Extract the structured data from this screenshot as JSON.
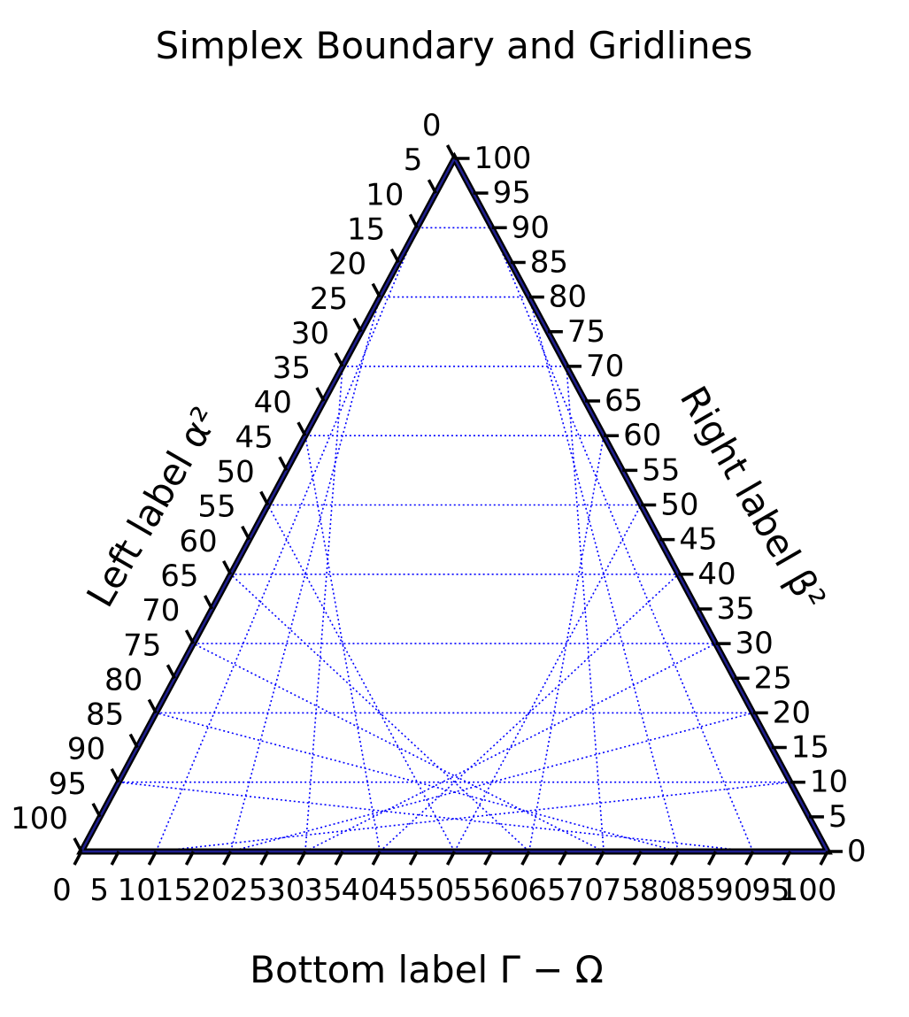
{
  "chart_data": {
    "type": "ternary",
    "title": "Simplex Boundary and Gridlines",
    "scale": 100,
    "tick_step": 5,
    "gridline_step": 10,
    "gridline_style": "dotted",
    "colors": {
      "boundary": "#000000",
      "boundary_inner": "#1f1f8f",
      "gridlines": "#0000ff",
      "text": "#000000"
    },
    "axes": {
      "bottom": {
        "label": "Bottom label Γ − Ω",
        "ticks": [
          "0",
          "5",
          "10",
          "15",
          "20",
          "25",
          "30",
          "35",
          "40",
          "45",
          "50",
          "55",
          "60",
          "65",
          "70",
          "75",
          "80",
          "85",
          "90",
          "95",
          "100"
        ]
      },
      "left": {
        "label": "Left label α²",
        "ticks": [
          "0",
          "5",
          "10",
          "15",
          "20",
          "25",
          "30",
          "35",
          "40",
          "45",
          "50",
          "55",
          "60",
          "65",
          "70",
          "75",
          "80",
          "85",
          "90",
          "95",
          "100"
        ]
      },
      "right": {
        "label": "Right label β²",
        "ticks": [
          "0",
          "5",
          "10",
          "15",
          "20",
          "25",
          "30",
          "35",
          "40",
          "45",
          "50",
          "55",
          "60",
          "65",
          "70",
          "75",
          "80",
          "85",
          "90",
          "95",
          "100"
        ]
      }
    }
  }
}
